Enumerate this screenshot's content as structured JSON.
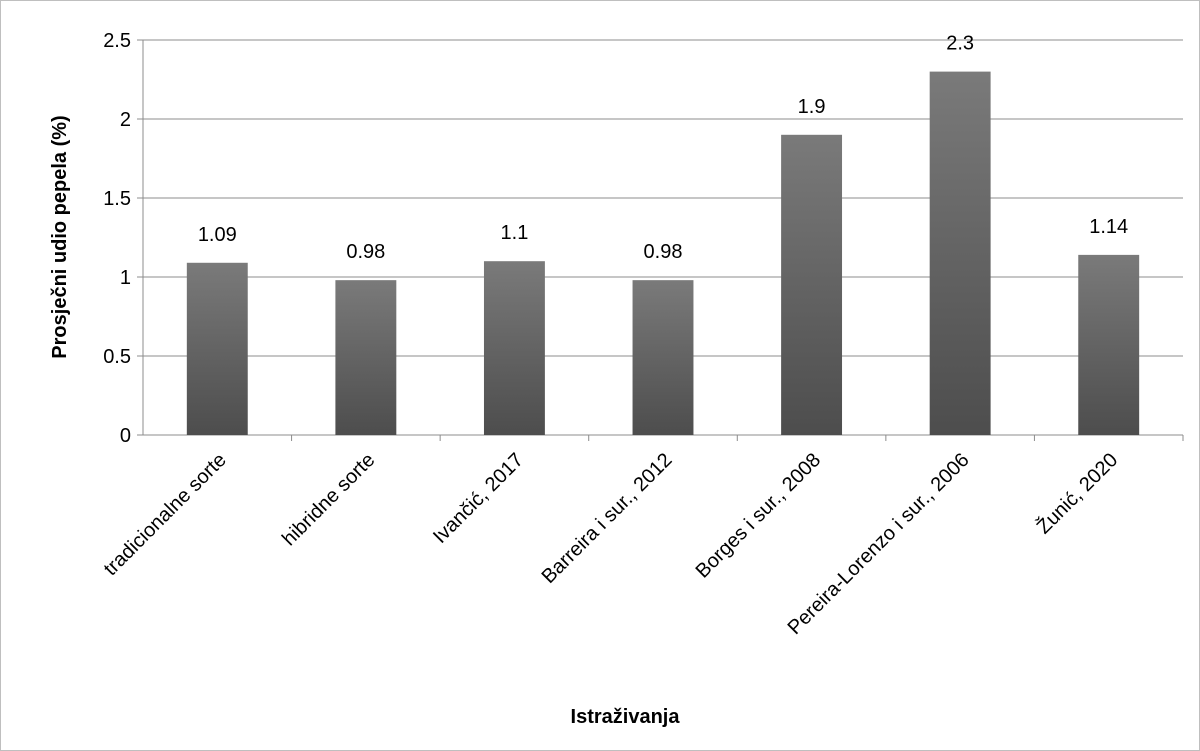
{
  "chart_data": {
    "type": "bar",
    "title": "",
    "xlabel": "Istraživanja",
    "ylabel": "Prosječni udio pepela (%)",
    "categories": [
      "tradicionalne sorte",
      "hibridne sorte",
      "Ivančić, 2017",
      "Barreira i sur., 2012",
      "Borges i sur., 2008",
      "Pereira-Lorenzo i sur., 2006",
      "Žunić, 2020"
    ],
    "values": [
      1.09,
      0.98,
      1.1,
      0.98,
      1.9,
      2.3,
      1.14
    ],
    "value_labels": [
      "1.09",
      "0.98",
      "1.1",
      "0.98",
      "1.9",
      "2.3",
      "1.14"
    ],
    "ylim": [
      0,
      2.5
    ],
    "yticks": [
      0,
      0.5,
      1,
      1.5,
      2,
      2.5
    ],
    "ytick_labels": [
      "0",
      "0.5",
      "1",
      "1.5",
      "2",
      "2.5"
    ],
    "grid": true,
    "legend": "none",
    "colors": {
      "bar_top": "#7a7a7a",
      "bar_bottom": "#4d4d4d",
      "grid": "#8c8c8c",
      "axis": "#8c8c8c"
    }
  }
}
